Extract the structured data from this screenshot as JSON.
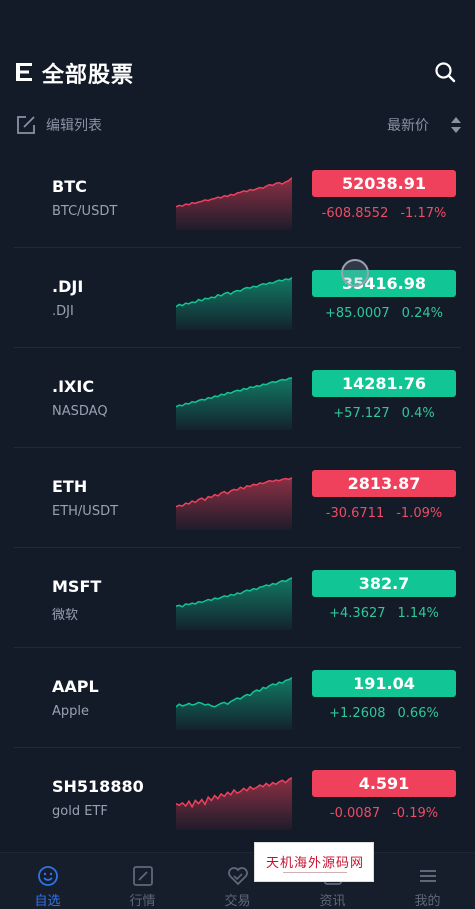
{
  "header": {
    "title": "全部股票",
    "menu_icon": "menu-icon",
    "search_icon": "search-icon"
  },
  "toolbar": {
    "edit_label": "编辑列表",
    "sort_label": "最新价"
  },
  "colors": {
    "up": "#11c694",
    "down": "#f0415c",
    "background": "#131a28",
    "active_nav": "#2f74e8"
  },
  "stocks": [
    {
      "symbol": "BTC",
      "name": "BTC/USDT",
      "price": "52038.91",
      "change": "-608.8552",
      "percent": "-1.17%",
      "direction": "down",
      "trend": [
        40,
        42,
        41,
        44,
        43,
        46,
        45,
        47,
        48,
        50,
        49,
        51,
        52,
        54,
        53,
        56,
        55,
        58,
        57,
        60,
        61,
        63,
        62,
        65,
        64,
        66,
        68,
        67,
        70,
        72,
        71,
        74,
        75,
        73,
        76,
        78,
        82
      ]
    },
    {
      "symbol": ".DJI",
      "name": ".DJI",
      "price": "35416.98",
      "change": "+85.0007",
      "percent": "0.24%",
      "direction": "up",
      "trend": [
        30,
        34,
        32,
        36,
        35,
        38,
        37,
        42,
        40,
        44,
        43,
        46,
        45,
        50,
        48,
        52,
        54,
        51,
        55,
        57,
        56,
        60,
        62,
        61,
        64,
        63,
        66,
        68,
        67,
        70,
        69,
        72,
        74,
        73,
        76,
        75,
        78
      ]
    },
    {
      "symbol": ".IXIC",
      "name": "NASDAQ",
      "price": "14281.76",
      "change": "+57.127",
      "percent": "0.4%",
      "direction": "up",
      "trend": [
        25,
        28,
        27,
        31,
        30,
        34,
        33,
        36,
        38,
        37,
        41,
        40,
        44,
        43,
        47,
        46,
        50,
        49,
        52,
        54,
        53,
        57,
        56,
        60,
        59,
        62,
        61,
        65,
        64,
        67,
        69,
        68,
        71,
        73,
        72,
        75,
        76
      ]
    },
    {
      "symbol": "ETH",
      "name": "ETH/USDT",
      "price": "2813.87",
      "change": "-30.6711",
      "percent": "-1.09%",
      "direction": "down",
      "trend": [
        38,
        40,
        39,
        43,
        42,
        46,
        44,
        48,
        50,
        47,
        52,
        51,
        55,
        53,
        57,
        59,
        56,
        60,
        62,
        61,
        65,
        63,
        67,
        66,
        69,
        68,
        71,
        70,
        72,
        74,
        73,
        75,
        74,
        76,
        77,
        76,
        78
      ]
    },
    {
      "symbol": "MSFT",
      "name": "微软",
      "price": "382.7",
      "change": "+4.3627",
      "percent": "1.14%",
      "direction": "up",
      "trend": [
        35,
        36,
        34,
        38,
        37,
        39,
        38,
        41,
        40,
        42,
        44,
        43,
        46,
        45,
        47,
        49,
        48,
        51,
        50,
        53,
        52,
        55,
        57,
        56,
        59,
        58,
        61,
        62,
        64,
        63,
        66,
        65,
        68,
        70,
        69,
        72,
        74
      ]
    },
    {
      "symbol": "AAPL",
      "name": "Apple",
      "price": "191.04",
      "change": "+1.2608",
      "percent": "0.66%",
      "direction": "up",
      "trend": [
        40,
        43,
        41,
        42,
        44,
        42,
        43,
        45,
        44,
        42,
        43,
        41,
        40,
        42,
        44,
        45,
        43,
        46,
        48,
        50,
        49,
        52,
        54,
        53,
        57,
        59,
        58,
        62,
        61,
        64,
        66,
        65,
        68,
        67,
        70,
        71,
        73
      ]
    },
    {
      "symbol": "SH518880",
      "name": "gold ETF",
      "price": "4.591",
      "change": "-0.0087",
      "percent": "-0.19%",
      "direction": "down",
      "trend": [
        30,
        28,
        31,
        27,
        33,
        26,
        34,
        30,
        35,
        29,
        38,
        34,
        40,
        36,
        42,
        39,
        44,
        41,
        47,
        43,
        45,
        49,
        46,
        51,
        48,
        50,
        53,
        51,
        55,
        52,
        56,
        54,
        57,
        59,
        56,
        60,
        62
      ]
    }
  ],
  "nav": [
    {
      "label": "自选",
      "icon": "smile-icon",
      "active": true
    },
    {
      "label": "行情",
      "icon": "chart-icon",
      "active": false
    },
    {
      "label": "交易",
      "icon": "trade-icon",
      "active": false
    },
    {
      "label": "资讯",
      "icon": "news-icon",
      "active": false
    },
    {
      "label": "我的",
      "icon": "profile-icon",
      "active": false
    }
  ],
  "watermark": {
    "text": "天机海外源码网"
  }
}
